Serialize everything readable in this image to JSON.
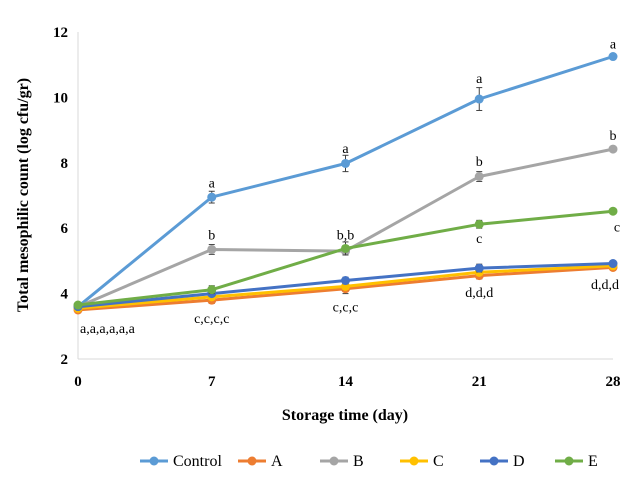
{
  "chart_data": {
    "type": "line",
    "title": "",
    "xlabel": "Storage time (day)",
    "ylabel": "Total mesophilic count (log cfu/gr)",
    "x": [
      0,
      7,
      14,
      21,
      28
    ],
    "x_ticks": [
      "0",
      "7",
      "14",
      "21",
      "28"
    ],
    "ylim": [
      2,
      12
    ],
    "y_ticks": [
      "2",
      "4",
      "6",
      "8",
      "10",
      "12"
    ],
    "grid": false,
    "legend_position": "bottom",
    "series": [
      {
        "name": "Control",
        "color": "#5B9BD5",
        "values": [
          3.6,
          6.95,
          7.98,
          9.95,
          11.25
        ],
        "errors": [
          0,
          0.18,
          0.25,
          0.35,
          0.08
        ]
      },
      {
        "name": "A",
        "color": "#ED7D31",
        "values": [
          3.5,
          3.8,
          4.15,
          4.55,
          4.8
        ],
        "errors": [
          0,
          0.1,
          0.15,
          0.1,
          0.08
        ]
      },
      {
        "name": "B",
        "color": "#A5A5A5",
        "values": [
          3.6,
          5.35,
          5.3,
          7.58,
          8.42
        ],
        "errors": [
          0,
          0.15,
          0.1,
          0.15,
          0.08
        ]
      },
      {
        "name": "C",
        "color": "#FFC000",
        "values": [
          3.55,
          3.9,
          4.22,
          4.65,
          4.85
        ],
        "errors": [
          0,
          0.08,
          0.1,
          0.08,
          0.08
        ]
      },
      {
        "name": "D",
        "color": "#4472C4",
        "values": [
          3.6,
          4.0,
          4.4,
          4.78,
          4.92
        ],
        "errors": [
          0,
          0.08,
          0.1,
          0.12,
          0.08
        ]
      },
      {
        "name": "E",
        "color": "#70AD47",
        "values": [
          3.65,
          4.12,
          5.38,
          6.12,
          6.52
        ],
        "errors": [
          0,
          0.12,
          0.2,
          0.12,
          0.06
        ]
      }
    ],
    "annotations": [
      {
        "text": "a,a,a,a,a,a",
        "x": 0,
        "y": 2.95
      },
      {
        "text": "a",
        "x": 7,
        "y": 7.4
      },
      {
        "text": "b",
        "x": 7,
        "y": 5.8
      },
      {
        "text": "c,c,c,c",
        "x": 7,
        "y": 3.25
      },
      {
        "text": "a",
        "x": 14,
        "y": 8.45
      },
      {
        "text": "b,b",
        "x": 14,
        "y": 5.8
      },
      {
        "text": "c,c,c",
        "x": 14,
        "y": 3.6
      },
      {
        "text": "a",
        "x": 21,
        "y": 10.6
      },
      {
        "text": "b",
        "x": 21,
        "y": 8.05
      },
      {
        "text": "c",
        "x": 21,
        "y": 5.7
      },
      {
        "text": "d,d,d",
        "x": 21,
        "y": 4.05
      },
      {
        "text": "a",
        "x": 28,
        "y": 11.65
      },
      {
        "text": "b",
        "x": 28,
        "y": 8.85
      },
      {
        "text": "c",
        "x": 28,
        "y": 6.05
      },
      {
        "text": "d,d,d",
        "x": 28,
        "y": 4.3
      }
    ]
  }
}
